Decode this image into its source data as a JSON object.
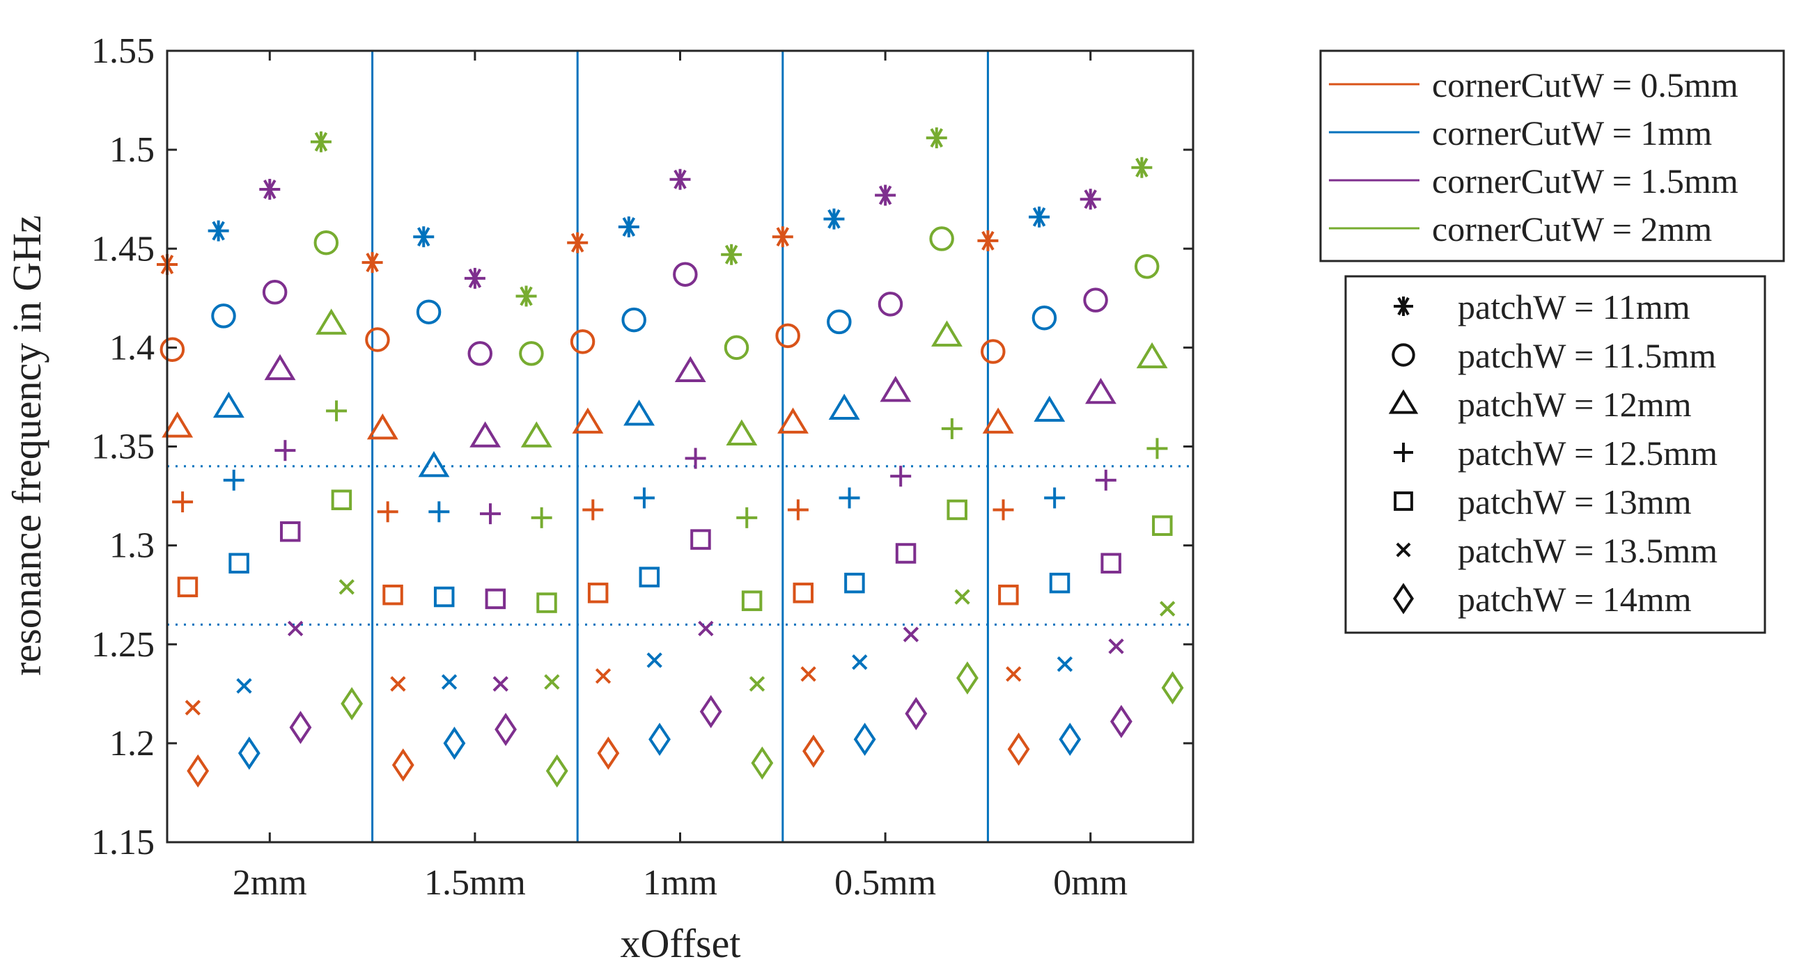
{
  "chart_data": {
    "type": "scatter",
    "title": "",
    "xlabel": "xOffset",
    "ylabel": "resonance frequency in GHz",
    "xlim": [
      -0.5,
      4.5
    ],
    "ylim": [
      1.15,
      1.55
    ],
    "x_categories": [
      "2mm",
      "1.5mm",
      "1mm",
      "0.5mm",
      "0mm"
    ],
    "x_category_positions": [
      0,
      1,
      2,
      3,
      4
    ],
    "y_ticks": [
      "1.15",
      "1.2",
      "1.25",
      "1.3",
      "1.35",
      "1.4",
      "1.45",
      "1.5",
      "1.55"
    ],
    "y_tick_values": [
      1.15,
      1.2,
      1.25,
      1.3,
      1.35,
      1.4,
      1.45,
      1.5,
      1.55
    ],
    "group_separators_x": [
      0.5,
      1.5,
      2.5,
      3.5
    ],
    "reference_lines_y": [
      1.26,
      1.34
    ],
    "series_offsets": [
      -0.375,
      -0.125,
      0.125,
      0.375
    ],
    "series_colors": [
      "#d95319",
      "#0072bd",
      "#7e2f8e",
      "#77ac30"
    ],
    "cornercut_series": [
      {
        "name": "cornerCutW = 0.5mm",
        "color": "#d95319"
      },
      {
        "name": "cornerCutW = 1mm",
        "color": "#0072bd"
      },
      {
        "name": "cornerCutW = 1.5mm",
        "color": "#7e2f8e"
      },
      {
        "name": "cornerCutW = 2mm",
        "color": "#77ac30"
      }
    ],
    "patch_series": [
      {
        "name": "patchW = 11mm",
        "marker": "asterisk",
        "offset": -0.125,
        "values": [
          [
            1.442,
            1.459,
            1.48,
            1.504
          ],
          [
            1.443,
            1.456,
            1.435,
            1.426
          ],
          [
            1.453,
            1.461,
            1.485,
            1.447
          ],
          [
            1.456,
            1.465,
            1.477,
            1.506
          ],
          [
            1.454,
            1.466,
            1.475,
            1.491
          ]
        ]
      },
      {
        "name": "patchW = 11.5mm",
        "marker": "circle",
        "offset": -0.1,
        "values": [
          [
            1.399,
            1.416,
            1.428,
            1.453
          ],
          [
            1.404,
            1.418,
            1.397,
            1.397
          ],
          [
            1.403,
            1.414,
            1.437,
            1.4
          ],
          [
            1.406,
            1.413,
            1.422,
            1.455
          ],
          [
            1.398,
            1.415,
            1.424,
            1.441
          ]
        ]
      },
      {
        "name": "patchW = 12mm",
        "marker": "triangle",
        "offset": -0.075,
        "values": [
          [
            1.36,
            1.37,
            1.389,
            1.412
          ],
          [
            1.359,
            1.34,
            1.355,
            1.355
          ],
          [
            1.362,
            1.366,
            1.388,
            1.356
          ],
          [
            1.362,
            1.369,
            1.378,
            1.406
          ],
          [
            1.362,
            1.368,
            1.377,
            1.395
          ]
        ]
      },
      {
        "name": "patchW = 12.5mm",
        "marker": "plus",
        "offset": -0.05,
        "values": [
          [
            1.322,
            1.333,
            1.348,
            1.368
          ],
          [
            1.317,
            1.317,
            1.316,
            1.314
          ],
          [
            1.318,
            1.324,
            1.344,
            1.314
          ],
          [
            1.318,
            1.324,
            1.335,
            1.359
          ],
          [
            1.318,
            1.324,
            1.333,
            1.349
          ]
        ]
      },
      {
        "name": "patchW = 13mm",
        "marker": "square",
        "offset": -0.025,
        "values": [
          [
            1.279,
            1.291,
            1.307,
            1.323
          ],
          [
            1.275,
            1.274,
            1.273,
            1.271
          ],
          [
            1.276,
            1.284,
            1.303,
            1.272
          ],
          [
            1.276,
            1.281,
            1.296,
            1.318
          ],
          [
            1.275,
            1.281,
            1.291,
            1.31
          ]
        ]
      },
      {
        "name": "patchW = 13.5mm",
        "marker": "x",
        "offset": 0.0,
        "values": [
          [
            1.218,
            1.229,
            1.258,
            1.279
          ],
          [
            1.23,
            1.231,
            1.23,
            1.231
          ],
          [
            1.234,
            1.242,
            1.258,
            1.23
          ],
          [
            1.235,
            1.241,
            1.255,
            1.274
          ],
          [
            1.235,
            1.24,
            1.249,
            1.268
          ]
        ]
      },
      {
        "name": "patchW = 14mm",
        "marker": "diamond",
        "offset": 0.025,
        "values": [
          [
            1.186,
            1.195,
            1.208,
            1.22
          ],
          [
            1.189,
            1.2,
            1.207,
            1.186
          ],
          [
            1.195,
            1.202,
            1.216,
            1.19
          ],
          [
            1.196,
            1.202,
            1.215,
            1.233
          ],
          [
            1.197,
            1.202,
            1.211,
            1.228
          ]
        ]
      }
    ]
  }
}
